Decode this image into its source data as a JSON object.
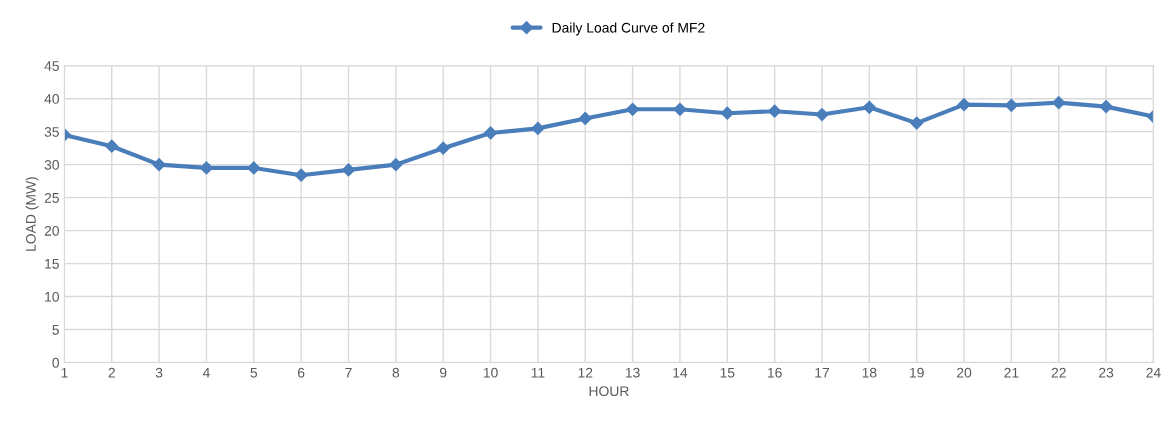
{
  "chart_data": {
    "type": "line",
    "xlabel": "HOUR",
    "ylabel": "LOAD (MW)",
    "x": [
      1,
      2,
      3,
      4,
      5,
      6,
      7,
      8,
      9,
      10,
      11,
      12,
      13,
      14,
      15,
      16,
      17,
      18,
      19,
      20,
      21,
      22,
      23,
      24
    ],
    "series": [
      {
        "name": "Daily Load Curve of MF2",
        "color": "#4a7ebb",
        "values": [
          34.5,
          32.8,
          30.0,
          29.5,
          29.5,
          28.4,
          29.2,
          30.0,
          32.5,
          34.8,
          35.5,
          37.0,
          38.4,
          38.4,
          37.8,
          38.1,
          37.6,
          38.7,
          36.3,
          39.1,
          39.0,
          39.4,
          38.8,
          37.3
        ]
      }
    ],
    "xlim": [
      1,
      24
    ],
    "xticks": [
      1,
      2,
      3,
      4,
      5,
      6,
      7,
      8,
      9,
      10,
      11,
      12,
      13,
      14,
      15,
      16,
      17,
      18,
      19,
      20,
      21,
      22,
      23,
      24
    ],
    "ylim": [
      0,
      45
    ],
    "yticks": [
      0,
      5,
      10,
      15,
      20,
      25,
      30,
      35,
      40,
      45
    ],
    "grid": true,
    "legend": "top",
    "marker": "diamond",
    "line_style": "solid"
  }
}
